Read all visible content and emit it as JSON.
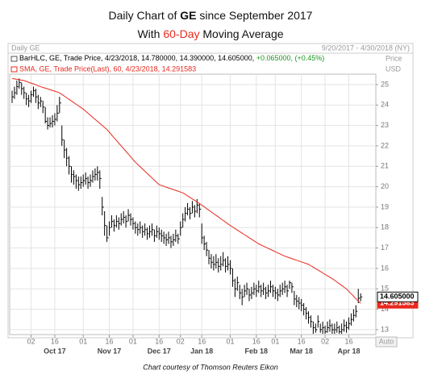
{
  "chart_data": {
    "type": "ohlc",
    "title_parts": [
      "Daily Chart of ",
      "GE",
      " since September 2017"
    ],
    "subtitle_parts": [
      "With ",
      "60-Day",
      " Moving Average"
    ],
    "panel_title": "Daily GE",
    "date_range": "9/20/2017 - 4/30/2018 (NY)",
    "axis_unit": [
      "Price",
      "USD"
    ],
    "auto_label": "Auto",
    "credit": "Chart courtesy of Thomson Reuters Eikon",
    "grid": true,
    "x": [
      "2017-09-20",
      "2017-09-21",
      "2017-09-22",
      "2017-09-25",
      "2017-09-26",
      "2017-09-27",
      "2017-09-28",
      "2017-09-29",
      "2017-10-02",
      "2017-10-03",
      "2017-10-04",
      "2017-10-05",
      "2017-10-06",
      "2017-10-09",
      "2017-10-10",
      "2017-10-11",
      "2017-10-12",
      "2017-10-13",
      "2017-10-16",
      "2017-10-17",
      "2017-10-18",
      "2017-10-19",
      "2017-10-20",
      "2017-10-23",
      "2017-10-24",
      "2017-10-25",
      "2017-10-26",
      "2017-10-27",
      "2017-10-30",
      "2017-10-31",
      "2017-11-01",
      "2017-11-02",
      "2017-11-03",
      "2017-11-06",
      "2017-11-07",
      "2017-11-08",
      "2017-11-09",
      "2017-11-10",
      "2017-11-13",
      "2017-11-14",
      "2017-11-15",
      "2017-11-16",
      "2017-11-17",
      "2017-11-20",
      "2017-11-21",
      "2017-11-22",
      "2017-11-24",
      "2017-11-27",
      "2017-11-28",
      "2017-11-29",
      "2017-11-30",
      "2017-12-01",
      "2017-12-04",
      "2017-12-05",
      "2017-12-06",
      "2017-12-07",
      "2017-12-08",
      "2017-12-11",
      "2017-12-12",
      "2017-12-13",
      "2017-12-14",
      "2017-12-15",
      "2017-12-18",
      "2017-12-19",
      "2017-12-20",
      "2017-12-21",
      "2017-12-22",
      "2017-12-26",
      "2017-12-27",
      "2017-12-28",
      "2017-12-29",
      "2018-01-02",
      "2018-01-03",
      "2018-01-04",
      "2018-01-05",
      "2018-01-08",
      "2018-01-09",
      "2018-01-10",
      "2018-01-11",
      "2018-01-12",
      "2018-01-16",
      "2018-01-17",
      "2018-01-18",
      "2018-01-19",
      "2018-01-22",
      "2018-01-23",
      "2018-01-24",
      "2018-01-25",
      "2018-01-26",
      "2018-01-29",
      "2018-01-30",
      "2018-01-31",
      "2018-02-01",
      "2018-02-02",
      "2018-02-05",
      "2018-02-06",
      "2018-02-07",
      "2018-02-08",
      "2018-02-09",
      "2018-02-12",
      "2018-02-13",
      "2018-02-14",
      "2018-02-15",
      "2018-02-16",
      "2018-02-20",
      "2018-02-21",
      "2018-02-22",
      "2018-02-23",
      "2018-02-26",
      "2018-02-27",
      "2018-02-28",
      "2018-03-01",
      "2018-03-02",
      "2018-03-05",
      "2018-03-06",
      "2018-03-07",
      "2018-03-08",
      "2018-03-09",
      "2018-03-12",
      "2018-03-13",
      "2018-03-14",
      "2018-03-15",
      "2018-03-16",
      "2018-03-19",
      "2018-03-20",
      "2018-03-21",
      "2018-03-22",
      "2018-03-23",
      "2018-03-26",
      "2018-03-27",
      "2018-03-28",
      "2018-03-29",
      "2018-04-02",
      "2018-04-03",
      "2018-04-04",
      "2018-04-05",
      "2018-04-06",
      "2018-04-09",
      "2018-04-10",
      "2018-04-11",
      "2018-04-12",
      "2018-04-13",
      "2018-04-16",
      "2018-04-17",
      "2018-04-18",
      "2018-04-19",
      "2018-04-20",
      "2018-04-23"
    ],
    "xticks": [
      {
        "value": "2017-10-02",
        "label": "02"
      },
      {
        "value": "2017-10-16",
        "label": "16"
      },
      {
        "value": "2017-11-01",
        "label": "01"
      },
      {
        "value": "2017-11-16",
        "label": "16"
      },
      {
        "value": "2017-12-01",
        "label": "01"
      },
      {
        "value": "2017-12-18",
        "label": "16"
      },
      {
        "value": "2018-01-02",
        "label": "02"
      },
      {
        "value": "2018-01-16",
        "label": "16"
      },
      {
        "value": "2018-02-01",
        "label": "01"
      },
      {
        "value": "2018-02-16",
        "label": "16"
      },
      {
        "value": "2018-03-01",
        "label": "01"
      },
      {
        "value": "2018-03-16",
        "label": "16"
      },
      {
        "value": "2018-04-02",
        "label": "02"
      },
      {
        "value": "2018-04-16",
        "label": "16"
      }
    ],
    "month_ticks": [
      {
        "value": "2017-10-16",
        "label": "Oct 17"
      },
      {
        "value": "2017-11-16",
        "label": "Nov 17"
      },
      {
        "value": "2017-12-18",
        "label": "Dec 17"
      },
      {
        "value": "2018-01-16",
        "label": "Jan 18"
      },
      {
        "value": "2018-02-16",
        "label": "Feb 18"
      },
      {
        "value": "2018-03-16",
        "label": "Mar 18"
      },
      {
        "value": "2018-04-16",
        "label": "Apr 18"
      }
    ],
    "ylim": [
      12.76,
      25.51
    ],
    "yticks": [
      13,
      14,
      15,
      16,
      17,
      18,
      19,
      20,
      21,
      22,
      23,
      24,
      25
    ],
    "series": [
      {
        "name": "BarHLC, GE, Trade Price, 4/23/2018, 14.780000, 14.390000, 14.605000, ",
        "name_change": "+0.065000, (+0.45%)",
        "color": "#000000",
        "change_color": "#1a9a1a",
        "last_label": "14.605000",
        "high": [
          24.7,
          24.9,
          25.2,
          25.3,
          25.1,
          24.9,
          24.6,
          24.5,
          24.7,
          24.9,
          24.8,
          24.5,
          24.4,
          24.2,
          23.9,
          23.4,
          23.4,
          23.5,
          23.6,
          24.0,
          24.4,
          23.0,
          22.3,
          21.9,
          21.5,
          21.0,
          20.8,
          20.6,
          20.5,
          20.5,
          20.6,
          20.7,
          20.5,
          20.6,
          20.8,
          20.9,
          21.0,
          20.8,
          19.5,
          18.8,
          18.1,
          18.3,
          18.6,
          18.4,
          18.6,
          18.5,
          18.7,
          18.8,
          18.6,
          18.9,
          18.7,
          18.5,
          18.3,
          18.2,
          18.3,
          18.1,
          18.2,
          18.0,
          18.1,
          18.2,
          17.9,
          18.1,
          18.0,
          17.9,
          17.8,
          17.7,
          17.8,
          17.6,
          17.7,
          17.9,
          17.7,
          18.3,
          18.7,
          19.0,
          19.2,
          19.0,
          19.3,
          19.1,
          19.4,
          19.2,
          18.2,
          17.6,
          17.3,
          16.9,
          16.7,
          16.6,
          16.7,
          16.5,
          16.6,
          16.8,
          16.5,
          16.6,
          16.4,
          16.0,
          15.5,
          15.6,
          15.2,
          15.0,
          15.2,
          15.3,
          15.0,
          15.1,
          15.3,
          15.2,
          15.4,
          15.2,
          15.3,
          15.1,
          15.2,
          15.4,
          15.2,
          15.1,
          15.0,
          15.2,
          15.3,
          15.4,
          15.2,
          15.4,
          15.3,
          14.9,
          14.7,
          14.6,
          14.5,
          14.3,
          14.1,
          13.9,
          13.7,
          13.4,
          13.3,
          13.7,
          13.3,
          13.4,
          13.2,
          13.4,
          13.5,
          13.3,
          13.3,
          13.4,
          13.2,
          13.3,
          13.5,
          13.4,
          13.6,
          13.8,
          14.0,
          14.2,
          15.0,
          14.78
        ],
        "low": [
          24.1,
          24.3,
          24.5,
          24.8,
          24.5,
          24.3,
          24.0,
          23.9,
          24.1,
          24.4,
          24.1,
          23.8,
          23.9,
          23.6,
          23.1,
          22.8,
          22.9,
          22.9,
          23.0,
          23.2,
          23.6,
          22.0,
          21.4,
          21.0,
          20.6,
          20.2,
          20.1,
          19.9,
          19.8,
          19.9,
          20.0,
          20.1,
          19.9,
          20.0,
          20.2,
          20.3,
          20.3,
          19.9,
          18.6,
          17.6,
          17.3,
          17.6,
          18.0,
          17.8,
          18.0,
          17.9,
          18.1,
          18.2,
          18.0,
          18.3,
          18.1,
          17.9,
          17.7,
          17.6,
          17.7,
          17.5,
          17.6,
          17.4,
          17.5,
          17.6,
          17.3,
          17.5,
          17.4,
          17.3,
          17.2,
          17.1,
          17.2,
          17.0,
          17.1,
          17.3,
          17.2,
          17.6,
          18.0,
          18.3,
          18.6,
          18.4,
          18.7,
          18.5,
          18.7,
          18.5,
          17.2,
          16.9,
          16.6,
          16.2,
          16.0,
          15.9,
          16.0,
          15.8,
          15.9,
          16.1,
          15.8,
          15.9,
          15.7,
          15.1,
          14.6,
          14.9,
          14.5,
          14.2,
          14.6,
          14.7,
          14.4,
          14.5,
          14.7,
          14.6,
          14.8,
          14.6,
          14.7,
          14.5,
          14.6,
          14.8,
          14.6,
          14.5,
          14.4,
          14.6,
          14.7,
          14.8,
          14.6,
          15.0,
          14.8,
          14.2,
          14.1,
          14.0,
          13.9,
          13.7,
          13.5,
          13.3,
          13.1,
          12.8,
          12.85,
          13.1,
          12.85,
          12.8,
          12.8,
          12.85,
          12.9,
          12.8,
          12.8,
          12.85,
          12.8,
          12.8,
          12.9,
          12.85,
          13.0,
          13.2,
          13.4,
          13.6,
          14.3,
          14.39
        ],
        "values": [
          24.4,
          24.6,
          24.9,
          25.1,
          24.8,
          24.6,
          24.3,
          24.2,
          24.5,
          24.7,
          24.4,
          24.1,
          24.2,
          23.9,
          23.2,
          23.0,
          23.1,
          23.2,
          23.3,
          23.6,
          24.1,
          22.3,
          21.8,
          21.4,
          21.0,
          20.6,
          20.5,
          20.3,
          20.1,
          20.2,
          20.3,
          20.4,
          20.2,
          20.3,
          20.5,
          20.6,
          20.7,
          20.4,
          19.0,
          18.1,
          17.5,
          18.0,
          18.3,
          18.1,
          18.3,
          18.2,
          18.4,
          18.5,
          18.3,
          18.6,
          18.4,
          18.2,
          18.0,
          17.9,
          18.0,
          17.8,
          17.9,
          17.7,
          17.8,
          17.9,
          17.6,
          17.8,
          17.7,
          17.6,
          17.5,
          17.4,
          17.5,
          17.3,
          17.4,
          17.6,
          17.45,
          18.0,
          18.4,
          18.7,
          18.9,
          18.7,
          19.0,
          18.8,
          19.1,
          18.9,
          17.5,
          17.2,
          16.9,
          16.5,
          16.3,
          16.2,
          16.3,
          16.1,
          16.2,
          16.4,
          16.1,
          16.2,
          16.0,
          15.4,
          15.0,
          15.3,
          14.8,
          14.6,
          14.9,
          15.0,
          14.7,
          14.8,
          15.0,
          14.9,
          15.1,
          14.9,
          15.0,
          14.8,
          14.9,
          15.1,
          14.9,
          14.8,
          14.7,
          14.9,
          15.0,
          15.1,
          14.9,
          15.3,
          15.1,
          14.5,
          14.4,
          14.3,
          14.2,
          14.0,
          13.8,
          13.6,
          13.4,
          13.1,
          13.0,
          13.4,
          13.0,
          13.1,
          12.9,
          13.1,
          13.2,
          13.0,
          13.0,
          13.1,
          12.9,
          13.0,
          13.2,
          13.1,
          13.3,
          13.5,
          13.7,
          13.9,
          14.54,
          14.605
        ]
      },
      {
        "name": "SMA, GE, Trade Price(Last), 60, 4/23/2018, 14.291583",
        "type": "line",
        "color": "#e8281e",
        "last_label": "14.291583",
        "values": [
          25.3,
          25.28,
          25.26,
          25.24,
          25.22,
          25.2,
          25.16,
          25.11,
          25.07,
          25.03,
          24.99,
          24.94,
          24.9,
          24.86,
          24.83,
          24.79,
          24.75,
          24.71,
          24.68,
          24.64,
          24.6,
          24.52,
          24.44,
          24.36,
          24.28,
          24.2,
          24.12,
          24.04,
          23.96,
          23.88,
          23.8,
          23.7,
          23.6,
          23.5,
          23.4,
          23.3,
          23.2,
          23.1,
          23.0,
          22.9,
          22.8,
          22.67,
          22.53,
          22.4,
          22.27,
          22.13,
          22.0,
          21.87,
          21.73,
          21.6,
          21.47,
          21.33,
          21.2,
          21.09,
          20.98,
          20.87,
          20.76,
          20.65,
          20.54,
          20.43,
          20.32,
          20.21,
          20.1,
          20.06,
          20.02,
          19.98,
          19.94,
          19.9,
          19.86,
          19.82,
          19.78,
          19.74,
          19.7,
          19.63,
          19.55,
          19.48,
          19.4,
          19.33,
          19.25,
          19.18,
          19.1,
          19.02,
          18.93,
          18.85,
          18.77,
          18.68,
          18.6,
          18.52,
          18.43,
          18.35,
          18.27,
          18.18,
          18.1,
          18.03,
          17.95,
          17.88,
          17.8,
          17.73,
          17.65,
          17.58,
          17.5,
          17.43,
          17.35,
          17.28,
          17.2,
          17.15,
          17.09,
          17.04,
          16.98,
          16.93,
          16.87,
          16.82,
          16.76,
          16.71,
          16.65,
          16.6,
          16.56,
          16.52,
          16.48,
          16.44,
          16.4,
          16.36,
          16.32,
          16.28,
          16.24,
          16.2,
          16.13,
          16.06,
          15.99,
          15.92,
          15.85,
          15.78,
          15.71,
          15.64,
          15.57,
          15.5,
          15.42,
          15.33,
          15.25,
          15.17,
          15.08,
          15.0,
          14.88,
          14.76,
          14.64,
          14.52,
          14.4,
          14.291583
        ]
      }
    ]
  }
}
